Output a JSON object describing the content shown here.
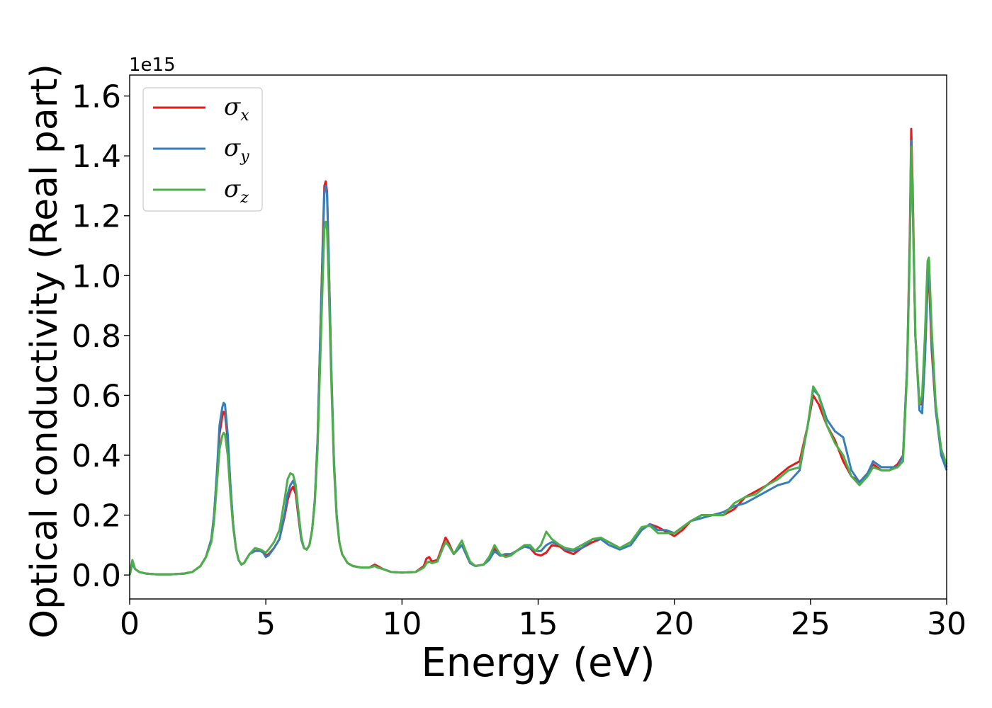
{
  "chart_data": {
    "type": "line",
    "title": "",
    "xlabel": "Energy (eV)",
    "ylabel": "Optical conductivity (Real part)",
    "y_offset_text": "1e15",
    "xlim": [
      0,
      30
    ],
    "ylim": [
      -0.08,
      1.67
    ],
    "xticks": [
      "0",
      "5",
      "10",
      "15",
      "20",
      "25",
      "30"
    ],
    "yticks": [
      "0.0",
      "0.2",
      "0.4",
      "0.6",
      "0.8",
      "1.0",
      "1.2",
      "1.4",
      "1.6"
    ],
    "grid": false,
    "legend_position": "top-left",
    "series": [
      {
        "name": "σx",
        "name_symbol": "σ",
        "name_sub": "x",
        "color": "#e41a1c",
        "x": [
          0,
          0.1,
          0.2,
          0.35,
          0.6,
          1,
          1.5,
          2,
          2.3,
          2.6,
          2.8,
          3,
          3.1,
          3.2,
          3.3,
          3.4,
          3.45,
          3.5,
          3.6,
          3.7,
          3.8,
          3.9,
          4.0,
          4.1,
          4.2,
          4.4,
          4.6,
          4.8,
          4.9,
          5.0,
          5.1,
          5.3,
          5.5,
          5.7,
          5.8,
          5.9,
          6.0,
          6.1,
          6.2,
          6.3,
          6.4,
          6.5,
          6.6,
          6.7,
          6.8,
          6.9,
          7.0,
          7.1,
          7.15,
          7.2,
          7.25,
          7.3,
          7.4,
          7.5,
          7.6,
          7.7,
          7.8,
          8.0,
          8.2,
          8.5,
          8.8,
          9.0,
          9.1,
          9.3,
          9.6,
          10.0,
          10.5,
          10.8,
          10.9,
          11.0,
          11.1,
          11.3,
          11.5,
          11.6,
          11.7,
          11.9,
          12.1,
          12.2,
          12.3,
          12.5,
          12.7,
          13.0,
          13.2,
          13.4,
          13.6,
          13.8,
          14.0,
          14.2,
          14.5,
          14.7,
          14.9,
          15.1,
          15.3,
          15.5,
          15.8,
          16.0,
          16.3,
          16.6,
          17.0,
          17.3,
          17.6,
          18.0,
          18.4,
          18.8,
          19.1,
          19.4,
          19.7,
          20.0,
          20.3,
          20.6,
          21.0,
          21.4,
          21.8,
          22.2,
          22.6,
          23.0,
          23.4,
          23.8,
          24.2,
          24.6,
          24.9,
          25.1,
          25.3,
          25.6,
          25.9,
          26.2,
          26.5,
          26.8,
          27.1,
          27.3,
          27.6,
          27.9,
          28.2,
          28.4,
          28.55,
          28.65,
          28.7,
          28.75,
          28.85,
          29.0,
          29.1,
          29.2,
          29.3,
          29.35,
          29.45,
          29.6,
          29.8,
          30.0
        ],
        "values": [
          0.0,
          0.04,
          0.02,
          0.01,
          0.005,
          0.002,
          0.002,
          0.005,
          0.01,
          0.03,
          0.06,
          0.12,
          0.2,
          0.33,
          0.47,
          0.53,
          0.545,
          0.54,
          0.45,
          0.3,
          0.17,
          0.09,
          0.05,
          0.035,
          0.04,
          0.07,
          0.08,
          0.085,
          0.08,
          0.065,
          0.07,
          0.09,
          0.12,
          0.2,
          0.25,
          0.28,
          0.295,
          0.27,
          0.19,
          0.12,
          0.09,
          0.085,
          0.1,
          0.15,
          0.25,
          0.45,
          0.8,
          1.15,
          1.3,
          1.315,
          1.28,
          1.1,
          0.7,
          0.38,
          0.2,
          0.11,
          0.07,
          0.04,
          0.03,
          0.025,
          0.025,
          0.035,
          0.03,
          0.02,
          0.01,
          0.008,
          0.01,
          0.03,
          0.055,
          0.06,
          0.045,
          0.05,
          0.1,
          0.125,
          0.11,
          0.07,
          0.09,
          0.1,
          0.08,
          0.04,
          0.03,
          0.035,
          0.06,
          0.09,
          0.065,
          0.065,
          0.07,
          0.08,
          0.1,
          0.09,
          0.07,
          0.065,
          0.075,
          0.1,
          0.095,
          0.08,
          0.07,
          0.09,
          0.11,
          0.12,
          0.11,
          0.09,
          0.11,
          0.15,
          0.17,
          0.16,
          0.145,
          0.13,
          0.15,
          0.18,
          0.2,
          0.2,
          0.2,
          0.22,
          0.26,
          0.28,
          0.3,
          0.33,
          0.36,
          0.38,
          0.5,
          0.6,
          0.57,
          0.5,
          0.45,
          0.38,
          0.33,
          0.31,
          0.34,
          0.37,
          0.35,
          0.35,
          0.37,
          0.4,
          0.7,
          1.15,
          1.49,
          1.3,
          0.8,
          0.57,
          0.57,
          0.72,
          0.97,
          0.99,
          0.75,
          0.55,
          0.42,
          0.36
        ]
      },
      {
        "name": "σy",
        "name_symbol": "σ",
        "name_sub": "y",
        "color": "#377eb8",
        "x": [
          0,
          0.1,
          0.2,
          0.35,
          0.6,
          1,
          1.5,
          2,
          2.3,
          2.6,
          2.8,
          3,
          3.1,
          3.2,
          3.3,
          3.4,
          3.45,
          3.5,
          3.6,
          3.7,
          3.8,
          3.9,
          4.0,
          4.1,
          4.2,
          4.4,
          4.6,
          4.8,
          4.9,
          5.0,
          5.1,
          5.3,
          5.5,
          5.7,
          5.8,
          5.9,
          6.0,
          6.1,
          6.2,
          6.3,
          6.4,
          6.5,
          6.6,
          6.7,
          6.8,
          6.9,
          7.0,
          7.1,
          7.15,
          7.2,
          7.25,
          7.3,
          7.4,
          7.5,
          7.6,
          7.7,
          7.8,
          8.0,
          8.2,
          8.5,
          8.8,
          9.0,
          9.1,
          9.3,
          9.6,
          10.0,
          10.5,
          10.8,
          10.9,
          11.0,
          11.1,
          11.3,
          11.5,
          11.6,
          11.7,
          11.9,
          12.1,
          12.2,
          12.3,
          12.5,
          12.7,
          13.0,
          13.2,
          13.4,
          13.6,
          13.8,
          14.0,
          14.2,
          14.5,
          14.7,
          14.9,
          15.1,
          15.3,
          15.5,
          15.8,
          16.0,
          16.3,
          16.6,
          17.0,
          17.3,
          17.6,
          18.0,
          18.4,
          18.8,
          19.1,
          19.4,
          19.7,
          20.0,
          20.3,
          20.6,
          21.0,
          21.4,
          21.8,
          22.2,
          22.6,
          23.0,
          23.4,
          23.8,
          24.2,
          24.6,
          24.9,
          25.1,
          25.3,
          25.6,
          25.9,
          26.2,
          26.5,
          26.8,
          27.1,
          27.3,
          27.6,
          27.9,
          28.2,
          28.4,
          28.55,
          28.65,
          28.7,
          28.75,
          28.85,
          29.0,
          29.1,
          29.2,
          29.3,
          29.35,
          29.45,
          29.6,
          29.8,
          30.0
        ],
        "values": [
          0.0,
          0.04,
          0.02,
          0.01,
          0.005,
          0.002,
          0.002,
          0.005,
          0.01,
          0.03,
          0.06,
          0.12,
          0.2,
          0.34,
          0.5,
          0.56,
          0.575,
          0.57,
          0.47,
          0.3,
          0.17,
          0.09,
          0.05,
          0.035,
          0.04,
          0.07,
          0.08,
          0.08,
          0.075,
          0.06,
          0.065,
          0.09,
          0.12,
          0.21,
          0.27,
          0.3,
          0.315,
          0.29,
          0.2,
          0.12,
          0.09,
          0.085,
          0.1,
          0.15,
          0.25,
          0.45,
          0.8,
          1.12,
          1.28,
          1.3,
          1.27,
          1.08,
          0.7,
          0.38,
          0.2,
          0.11,
          0.07,
          0.04,
          0.03,
          0.025,
          0.025,
          0.03,
          0.025,
          0.02,
          0.01,
          0.008,
          0.01,
          0.025,
          0.04,
          0.045,
          0.04,
          0.045,
          0.09,
          0.11,
          0.1,
          0.07,
          0.09,
          0.1,
          0.08,
          0.04,
          0.03,
          0.035,
          0.05,
          0.08,
          0.065,
          0.07,
          0.07,
          0.08,
          0.095,
          0.09,
          0.08,
          0.08,
          0.1,
          0.11,
          0.1,
          0.085,
          0.08,
          0.09,
          0.12,
          0.12,
          0.1,
          0.085,
          0.1,
          0.15,
          0.17,
          0.15,
          0.15,
          0.14,
          0.16,
          0.18,
          0.19,
          0.2,
          0.21,
          0.23,
          0.24,
          0.26,
          0.28,
          0.3,
          0.31,
          0.35,
          0.5,
          0.62,
          0.6,
          0.52,
          0.48,
          0.46,
          0.35,
          0.31,
          0.34,
          0.38,
          0.36,
          0.36,
          0.36,
          0.4,
          0.7,
          1.12,
          1.45,
          1.25,
          0.8,
          0.55,
          0.54,
          0.72,
          0.98,
          1.02,
          0.78,
          0.55,
          0.4,
          0.35
        ]
      },
      {
        "name": "σz",
        "name_symbol": "σ",
        "name_sub": "z",
        "color": "#4daf4a",
        "x": [
          0,
          0.1,
          0.2,
          0.35,
          0.6,
          1,
          1.5,
          2,
          2.3,
          2.6,
          2.8,
          3,
          3.1,
          3.2,
          3.3,
          3.4,
          3.45,
          3.5,
          3.6,
          3.7,
          3.8,
          3.9,
          4.0,
          4.1,
          4.2,
          4.4,
          4.6,
          4.8,
          4.9,
          5.0,
          5.1,
          5.3,
          5.5,
          5.7,
          5.8,
          5.9,
          6.0,
          6.1,
          6.2,
          6.3,
          6.4,
          6.5,
          6.6,
          6.7,
          6.8,
          6.9,
          7.0,
          7.1,
          7.15,
          7.2,
          7.25,
          7.3,
          7.4,
          7.5,
          7.6,
          7.7,
          7.8,
          8.0,
          8.2,
          8.5,
          8.8,
          9.0,
          9.1,
          9.3,
          9.6,
          10.0,
          10.5,
          10.8,
          10.9,
          11.0,
          11.1,
          11.3,
          11.5,
          11.6,
          11.7,
          11.9,
          12.1,
          12.2,
          12.3,
          12.5,
          12.7,
          13.0,
          13.2,
          13.4,
          13.6,
          13.8,
          14.0,
          14.2,
          14.5,
          14.7,
          14.9,
          15.1,
          15.3,
          15.5,
          15.8,
          16.0,
          16.3,
          16.6,
          17.0,
          17.3,
          17.6,
          18.0,
          18.4,
          18.8,
          19.1,
          19.4,
          19.7,
          20.0,
          20.3,
          20.6,
          21.0,
          21.4,
          21.8,
          22.2,
          22.6,
          23.0,
          23.4,
          23.8,
          24.2,
          24.6,
          24.9,
          25.1,
          25.3,
          25.6,
          25.9,
          26.2,
          26.5,
          26.8,
          27.1,
          27.3,
          27.6,
          27.9,
          28.2,
          28.4,
          28.55,
          28.65,
          28.7,
          28.75,
          28.85,
          29.0,
          29.1,
          29.2,
          29.3,
          29.35,
          29.45,
          29.6,
          29.8,
          30.0
        ],
        "values": [
          0.0,
          0.05,
          0.02,
          0.01,
          0.005,
          0.002,
          0.002,
          0.005,
          0.01,
          0.03,
          0.06,
          0.11,
          0.18,
          0.3,
          0.42,
          0.465,
          0.475,
          0.47,
          0.4,
          0.27,
          0.16,
          0.09,
          0.05,
          0.035,
          0.04,
          0.07,
          0.09,
          0.085,
          0.08,
          0.075,
          0.085,
          0.11,
          0.15,
          0.26,
          0.32,
          0.34,
          0.335,
          0.3,
          0.21,
          0.13,
          0.09,
          0.085,
          0.1,
          0.15,
          0.24,
          0.42,
          0.72,
          1.02,
          1.16,
          1.18,
          1.15,
          1.0,
          0.66,
          0.36,
          0.19,
          0.11,
          0.07,
          0.04,
          0.03,
          0.025,
          0.025,
          0.03,
          0.025,
          0.02,
          0.01,
          0.008,
          0.01,
          0.025,
          0.04,
          0.045,
          0.04,
          0.045,
          0.09,
          0.11,
          0.1,
          0.07,
          0.1,
          0.115,
          0.09,
          0.045,
          0.03,
          0.035,
          0.06,
          0.1,
          0.07,
          0.06,
          0.065,
          0.08,
          0.1,
          0.1,
          0.08,
          0.1,
          0.145,
          0.12,
          0.1,
          0.09,
          0.085,
          0.1,
          0.12,
          0.125,
          0.11,
          0.09,
          0.11,
          0.16,
          0.165,
          0.14,
          0.14,
          0.14,
          0.16,
          0.18,
          0.2,
          0.2,
          0.2,
          0.24,
          0.26,
          0.27,
          0.3,
          0.32,
          0.35,
          0.36,
          0.5,
          0.63,
          0.6,
          0.5,
          0.44,
          0.4,
          0.33,
          0.3,
          0.33,
          0.36,
          0.35,
          0.35,
          0.36,
          0.38,
          0.68,
          1.1,
          1.43,
          1.25,
          0.8,
          0.57,
          0.6,
          0.8,
          1.05,
          1.06,
          0.82,
          0.57,
          0.42,
          0.37
        ]
      }
    ]
  }
}
